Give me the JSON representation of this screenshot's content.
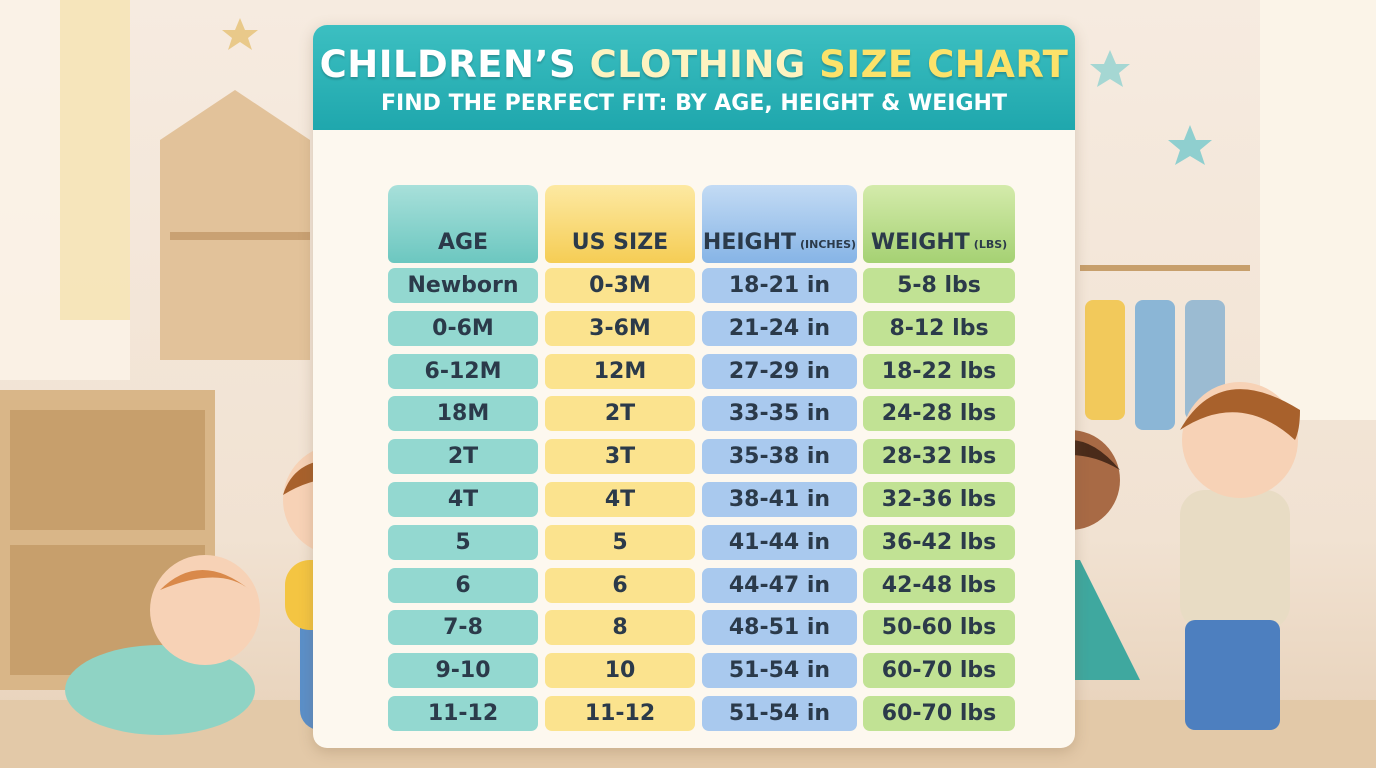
{
  "header": {
    "title": [
      "CHILDREN’S",
      "CLOTHING",
      "SIZE CHART"
    ],
    "subtitle": "FIND THE PERFECT FIT: BY AGE, HEIGHT & WEIGHT"
  },
  "table": {
    "columns": [
      {
        "label": "AGE"
      },
      {
        "label": "US SIZE"
      },
      {
        "label": "HEIGHT",
        "unit": "(INCHES)"
      },
      {
        "label": "WEIGHT",
        "unit": "(LBS)"
      }
    ],
    "rows": [
      [
        "Newborn",
        "0-3M",
        "18-21 in",
        "5-8 lbs"
      ],
      [
        "0-6M",
        "3-6M",
        "21-24 in",
        "8-12 lbs"
      ],
      [
        "6-12M",
        "12M",
        "27-29 in",
        "18-22 lbs"
      ],
      [
        "18M",
        "2T",
        "33-35 in",
        "24-28 lbs"
      ],
      [
        "2T",
        "3T",
        "35-38 in",
        "28-32 lbs"
      ],
      [
        "4T",
        "4T",
        "38-41 in",
        "32-36 lbs"
      ],
      [
        "5",
        "5",
        "41-44 in",
        "36-42 lbs"
      ],
      [
        "6",
        "6",
        "44-47 in",
        "42-48 lbs"
      ],
      [
        "7-8",
        "8",
        "48-51 in",
        "50-60 lbs"
      ],
      [
        "9-10",
        "10",
        "51-54 in",
        "60-70 lbs"
      ],
      [
        "11-12",
        "11-12",
        "51-54 in",
        "60-70 lbs"
      ]
    ]
  }
}
